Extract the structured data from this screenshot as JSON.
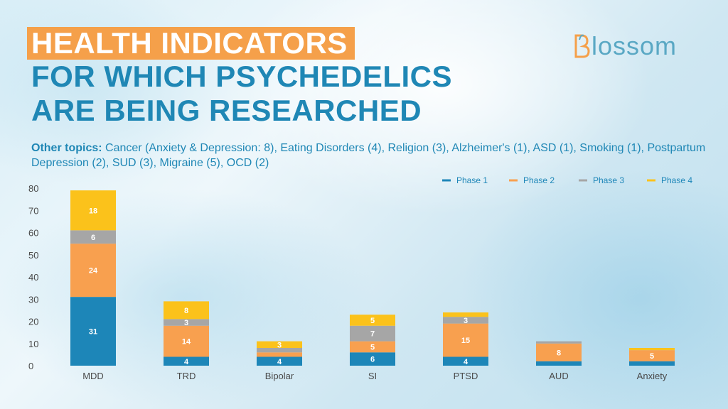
{
  "title": {
    "line1": "HEALTH INDICATORS",
    "line2": "FOR WHICH PSYCHEDELICS",
    "line3": "ARE BEING RESEARCHED"
  },
  "logo": {
    "text": "lossom",
    "icon": "blossom-b-logo"
  },
  "other_topics": {
    "lead": "Other topics:",
    "text": " Cancer (Anxiety & Depression: 8), Eating Disorders (4), Religion (3), Alzheimer's (1), ASD (1), Smoking (1), Postpartum Depression (2), SUD (3), Migraine (5), OCD (2)"
  },
  "colors": {
    "phase1": "#1d86b8",
    "phase2": "#f8a04f",
    "phase3": "#a6a6a6",
    "phase4": "#fbc21b",
    "axis_text": "#4a4a4a",
    "label": "#ffffff"
  },
  "chart_data": {
    "type": "bar",
    "stacked": true,
    "categories": [
      "MDD",
      "TRD",
      "Bipolar",
      "SI",
      "PTSD",
      "AUD",
      "Anxiety"
    ],
    "series": [
      {
        "name": "Phase 1",
        "values": [
          31,
          4,
          4,
          6,
          4,
          2,
          2
        ],
        "labels": [
          "31",
          "4",
          "4",
          "6",
          "4",
          "",
          ""
        ]
      },
      {
        "name": "Phase 2",
        "values": [
          24,
          14,
          2,
          5,
          15,
          8,
          5
        ],
        "labels": [
          "24",
          "14",
          "",
          "5",
          "15",
          "8",
          "5"
        ]
      },
      {
        "name": "Phase 3",
        "values": [
          6,
          3,
          2,
          7,
          3,
          1,
          0
        ],
        "labels": [
          "6",
          "3",
          "",
          "7",
          "3",
          "",
          ""
        ]
      },
      {
        "name": "Phase 4",
        "values": [
          18,
          8,
          3,
          5,
          2,
          0,
          1
        ],
        "labels": [
          "18",
          "8",
          "3",
          "5",
          "",
          "",
          ""
        ]
      }
    ],
    "ylim": [
      0,
      80
    ],
    "yticks": [
      "0",
      "10",
      "20",
      "30",
      "40",
      "50",
      "60",
      "70",
      "80"
    ],
    "grid": false,
    "legend": "top-right",
    "title": "",
    "xlabel": "",
    "ylabel": ""
  }
}
